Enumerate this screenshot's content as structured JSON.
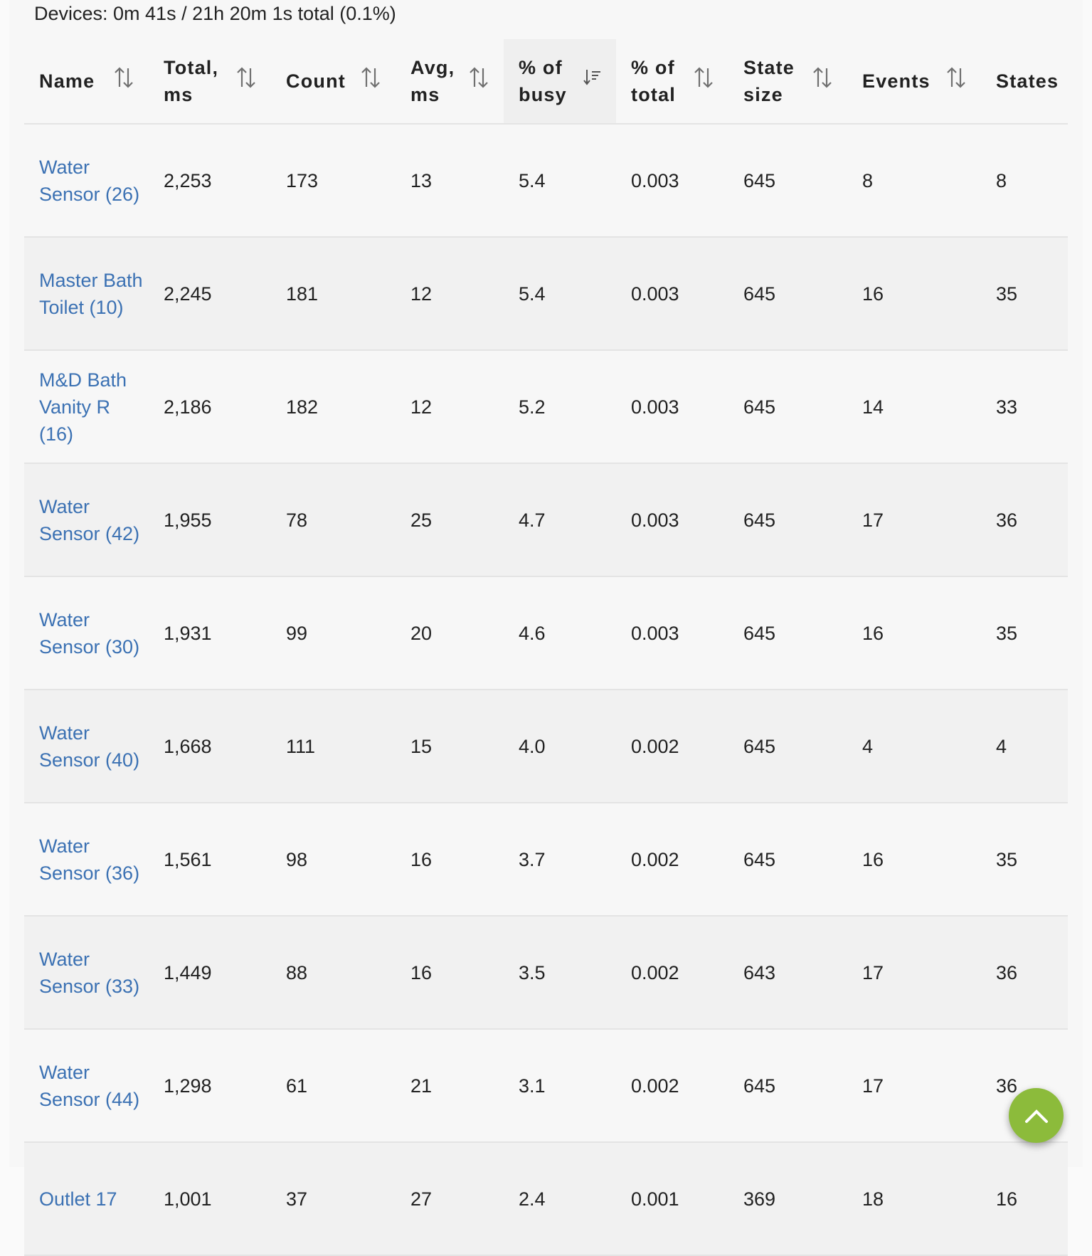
{
  "summary": "Devices: 0m 41s / 21h 20m 1s total (0.1%)",
  "columns": [
    {
      "label": "Name",
      "sort": "none"
    },
    {
      "label": "Total, ms",
      "sort": "none"
    },
    {
      "label": "Count",
      "sort": "none"
    },
    {
      "label": "Avg, ms",
      "sort": "none"
    },
    {
      "label": "% of busy",
      "sort": "descending"
    },
    {
      "label": "% of total",
      "sort": "none"
    },
    {
      "label": "State size",
      "sort": "none"
    },
    {
      "label": "Events",
      "sort": "none"
    },
    {
      "label": "States",
      "sort": "none"
    }
  ],
  "rows": [
    [
      "Water Sensor (26)",
      "2,253",
      "173",
      "13",
      "5.4",
      "0.003",
      "645",
      "8",
      "8"
    ],
    [
      "Master Bath Toilet (10)",
      "2,245",
      "181",
      "12",
      "5.4",
      "0.003",
      "645",
      "16",
      "35"
    ],
    [
      "M&D Bath Vanity R (16)",
      "2,186",
      "182",
      "12",
      "5.2",
      "0.003",
      "645",
      "14",
      "33"
    ],
    [
      "Water Sensor (42)",
      "1,955",
      "78",
      "25",
      "4.7",
      "0.003",
      "645",
      "17",
      "36"
    ],
    [
      "Water Sensor (30)",
      "1,931",
      "99",
      "20",
      "4.6",
      "0.003",
      "645",
      "16",
      "35"
    ],
    [
      "Water Sensor (40)",
      "1,668",
      "111",
      "15",
      "4.0",
      "0.002",
      "645",
      "4",
      "4"
    ],
    [
      "Water Sensor (36)",
      "1,561",
      "98",
      "16",
      "3.7",
      "0.002",
      "645",
      "16",
      "35"
    ],
    [
      "Water Sensor (33)",
      "1,449",
      "88",
      "16",
      "3.5",
      "0.002",
      "643",
      "17",
      "36"
    ],
    [
      "Water Sensor (44)",
      "1,298",
      "61",
      "21",
      "3.1",
      "0.002",
      "645",
      "17",
      "36"
    ],
    [
      "Outlet 17",
      "1,001",
      "37",
      "27",
      "2.4",
      "0.001",
      "369",
      "18",
      "16"
    ]
  ],
  "fab": {
    "icon": "chevron-up-icon",
    "color": "#8cbb3b"
  },
  "colors": {
    "link": "#3b71b3"
  }
}
